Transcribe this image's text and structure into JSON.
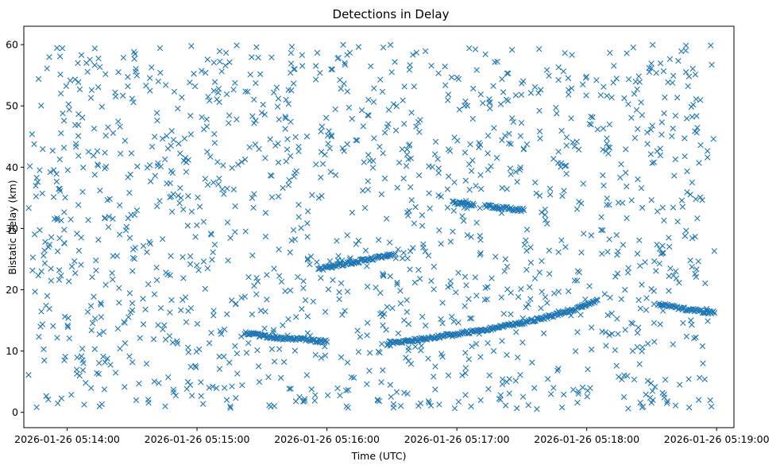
{
  "chart_data": {
    "type": "scatter",
    "title": "Detections in Delay",
    "xlabel": "Time (UTC)",
    "ylabel": "Bistatic Delay (km)",
    "marker": "x",
    "color": "#1f77b4",
    "grid": false,
    "legend": "none",
    "x_ticks": [
      "2026-01-26 05:14:00",
      "2026-01-26 05:15:00",
      "2026-01-26 05:16:00",
      "2026-01-26 05:17:00",
      "2026-01-26 05:18:00",
      "2026-01-26 05:19:00"
    ],
    "y_ticks": [
      "0",
      "10",
      "20",
      "30",
      "40",
      "50",
      "60"
    ],
    "xlim": [
      "2026-01-26 05:13:40",
      "2026-01-26 05:19:08"
    ],
    "ylim": [
      -2.5,
      63
    ],
    "tracks": [
      {
        "x": [
          "2026-01-26 05:15:22",
          "2026-01-26 05:15:28",
          "2026-01-26 05:15:34",
          "2026-01-26 05:15:40",
          "2026-01-26 05:15:46",
          "2026-01-26 05:15:52",
          "2026-01-26 05:15:58",
          "2026-01-26 05:16:00"
        ],
        "y": [
          13.0,
          12.6,
          12.3,
          12.1,
          12.0,
          11.8,
          11.6,
          11.5
        ]
      },
      {
        "x": [
          "2026-01-26 05:15:56",
          "2026-01-26 05:16:02",
          "2026-01-26 05:16:08",
          "2026-01-26 05:16:14",
          "2026-01-26 05:16:20",
          "2026-01-26 05:16:26",
          "2026-01-26 05:16:30"
        ],
        "y": [
          23.3,
          23.8,
          24.2,
          24.6,
          25.0,
          25.4,
          25.7
        ]
      },
      {
        "x": [
          "2026-01-26 05:16:28",
          "2026-01-26 05:16:45",
          "2026-01-26 05:17:00",
          "2026-01-26 05:17:15",
          "2026-01-26 05:17:30",
          "2026-01-26 05:17:45",
          "2026-01-26 05:17:55",
          "2026-01-26 05:18:05"
        ],
        "y": [
          11.3,
          12.0,
          12.8,
          13.6,
          14.6,
          15.8,
          16.8,
          18.3
        ]
      },
      {
        "x": [
          "2026-01-26 05:16:58",
          "2026-01-26 05:17:03",
          "2026-01-26 05:17:08"
        ],
        "y": [
          34.3,
          34.0,
          33.8
        ]
      },
      {
        "x": [
          "2026-01-26 05:17:13",
          "2026-01-26 05:17:19",
          "2026-01-26 05:17:25",
          "2026-01-26 05:17:31"
        ],
        "y": [
          33.7,
          33.4,
          33.2,
          33.0
        ]
      },
      {
        "x": [
          "2026-01-26 05:18:33",
          "2026-01-26 05:18:40",
          "2026-01-26 05:18:46",
          "2026-01-26 05:18:53",
          "2026-01-26 05:18:59"
        ],
        "y": [
          17.7,
          17.2,
          16.8,
          16.5,
          16.2
        ]
      }
    ],
    "noise_points": {
      "approx_count": 1450,
      "x_range": [
        "2026-01-26 05:13:42",
        "2026-01-26 05:18:59"
      ],
      "y_range": [
        0.5,
        60
      ]
    }
  }
}
